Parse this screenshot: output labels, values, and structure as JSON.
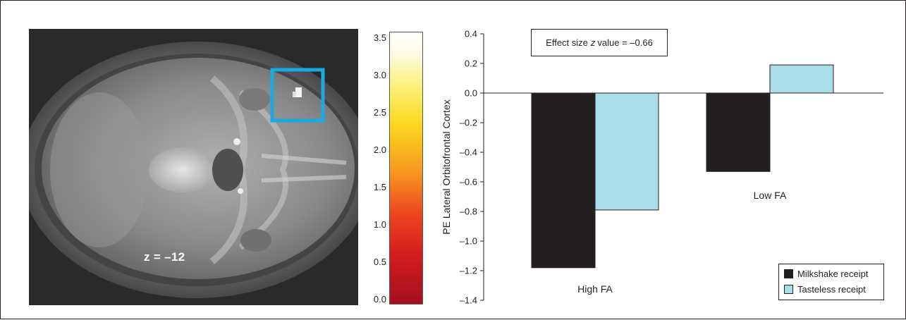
{
  "brain_panel": {
    "slice_label": "z = –12",
    "colorbar": {
      "min": 0.0,
      "max": 3.5,
      "ticks": [
        "0.0",
        "0.5",
        "1.0",
        "1.5",
        "2.0",
        "2.5",
        "3.0",
        "3.5"
      ],
      "colors": {
        "low": "#a40f1e",
        "mid": "#f79520",
        "high": "#ffffff"
      }
    },
    "roi_box_color": "#1ba9e1"
  },
  "effect_box": {
    "prefix": "Effect size",
    "z_label": "z",
    "suffix": "value = –0.66"
  },
  "chart_data": {
    "type": "bar",
    "categories": [
      "High FA",
      "Low FA"
    ],
    "ylabel": "PE Lateral Orbitofrontal Cortex",
    "xlabel": "",
    "ylim": [
      -1.4,
      0.4
    ],
    "yticks": [
      "0.4",
      "0.2",
      "0.0",
      "–0.2",
      "–0.4",
      "–0.6",
      "–0.8",
      "–1.0",
      "–1.2",
      "–1.4"
    ],
    "grid": false,
    "legend_position": "bottom-right",
    "series": [
      {
        "name": "Milkshake receipt",
        "color": "#231f20",
        "values": [
          -1.18,
          -0.53
        ]
      },
      {
        "name": "Tasteless receipt",
        "color": "#a9dde8",
        "values": [
          -0.79,
          0.19
        ]
      }
    ]
  }
}
